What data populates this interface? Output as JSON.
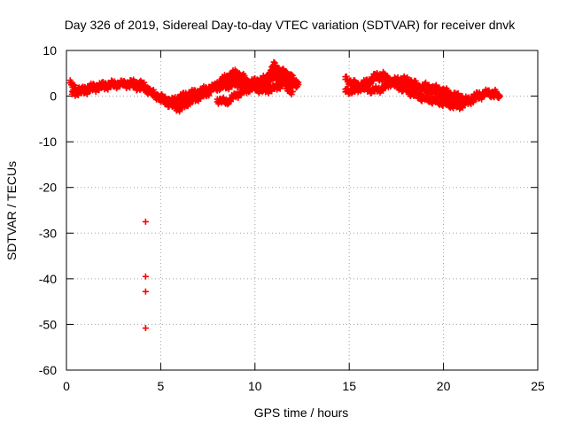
{
  "chart_data": {
    "type": "scatter",
    "title": "Day 326 of 2019, Sidereal Day-to-day VTEC variation (SDTVAR) for receiver dnvk",
    "xlabel": "GPS time / hours",
    "ylabel": "SDTVAR / TECUs",
    "xlim": [
      0,
      25
    ],
    "ylim": [
      -60,
      10
    ],
    "xticks": [
      0,
      5,
      10,
      15,
      20,
      25
    ],
    "yticks": [
      10,
      0,
      -10,
      -20,
      -30,
      -40,
      -50,
      -60
    ],
    "xtick_labels": [
      "0",
      "5",
      "10",
      "15",
      "20",
      "25"
    ],
    "ytick_labels": [
      "10",
      "0",
      "-10",
      "-20",
      "-30",
      "-40",
      "-50",
      "-60"
    ],
    "grid": true,
    "marker": "+",
    "color": "#ff0000",
    "series": [
      {
        "name": "SDTVAR",
        "bands": [
          {
            "x": [
              0.2,
              0.5,
              0.8,
              1.0,
              1.3,
              1.7,
              2.0,
              2.5,
              3.0,
              3.5,
              4.0,
              4.3,
              4.6,
              5.0,
              5.3,
              5.6,
              6.0,
              6.5,
              7.0,
              7.5,
              8.0,
              8.5,
              9.0,
              9.5,
              10.0,
              10.5,
              11.0,
              11.5,
              12.0,
              12.3
            ],
            "y": [
              3.0,
              2.0,
              1.5,
              2.0,
              2.3,
              2.5,
              2.8,
              3.0,
              3.0,
              3.2,
              3.0,
              2.0,
              0.5,
              0.0,
              -0.5,
              -0.8,
              0.0,
              0.8,
              1.2,
              2.0,
              2.2,
              2.5,
              3.0,
              3.0,
              3.5,
              4.0,
              4.5,
              4.0,
              3.5,
              3.0
            ]
          },
          {
            "x": [
              0.3,
              0.8,
              1.5,
              2.2,
              3.0,
              3.6,
              4.2,
              4.8,
              5.4,
              5.9,
              6.5,
              7.2,
              7.8,
              8.3,
              8.8,
              9.4,
              10.0,
              10.6,
              11.2,
              11.8,
              12.3
            ],
            "y": [
              1.0,
              1.2,
              2.0,
              2.5,
              3.0,
              2.5,
              1.8,
              0.5,
              -1.0,
              -2.0,
              -0.5,
              1.0,
              2.0,
              3.5,
              4.5,
              2.5,
              2.0,
              3.0,
              6.0,
              3.0,
              2.5
            ]
          },
          {
            "x": [
              5.0,
              5.5,
              6.0,
              6.5,
              7.0,
              7.5,
              8.0,
              8.5,
              9.0,
              9.5,
              10.0,
              10.5,
              11.0,
              11.5,
              12.0
            ],
            "y": [
              -0.5,
              -1.5,
              -2.5,
              -1.0,
              0.0,
              1.0,
              3.0,
              4.5,
              5.5,
              4.0,
              2.0,
              1.5,
              2.0,
              3.0,
              1.0
            ]
          },
          {
            "x": [
              8.0,
              8.5,
              9.0,
              9.5,
              10.0,
              10.5,
              11.0,
              11.5,
              12.0
            ],
            "y": [
              -0.5,
              -1.0,
              0.5,
              1.5,
              2.5,
              3.5,
              7.0,
              5.5,
              4.5
            ]
          },
          {
            "x": [
              14.8,
              15.3,
              15.8,
              16.3,
              16.8,
              17.3,
              17.8,
              18.3,
              18.8,
              19.3,
              19.8,
              20.3,
              20.8,
              21.3,
              21.8,
              22.3,
              22.8,
              23.0
            ],
            "y": [
              4.0,
              3.0,
              2.0,
              1.5,
              2.0,
              3.5,
              4.0,
              3.5,
              2.0,
              1.5,
              1.0,
              0.0,
              -1.0,
              -0.5,
              0.5,
              1.0,
              0.5,
              0.0
            ]
          },
          {
            "x": [
              14.8,
              15.3,
              15.8,
              16.3,
              16.8,
              17.3,
              17.8,
              18.3,
              18.8,
              19.3,
              19.8,
              20.3,
              20.8,
              21.3,
              21.8,
              22.3,
              22.8
            ],
            "y": [
              1.5,
              1.5,
              2.5,
              4.5,
              5.0,
              3.0,
              2.0,
              1.0,
              0.0,
              -0.5,
              -1.0,
              -1.5,
              -2.0,
              -1.0,
              0.0,
              1.0,
              1.0
            ]
          },
          {
            "x": [
              15.5,
              16.0,
              16.5,
              17.0,
              17.5,
              18.0,
              18.5,
              19.0,
              19.5,
              20.0,
              20.5,
              21.0
            ],
            "y": [
              2.5,
              3.5,
              4.5,
              4.0,
              3.0,
              2.5,
              2.0,
              2.5,
              2.0,
              1.5,
              0.5,
              0.0
            ]
          }
        ],
        "outliers": [
          {
            "x": 4.2,
            "y": -27.5
          },
          {
            "x": 4.2,
            "y": -39.5
          },
          {
            "x": 4.2,
            "y": -42.8
          },
          {
            "x": 4.2,
            "y": -50.8
          }
        ]
      }
    ]
  }
}
